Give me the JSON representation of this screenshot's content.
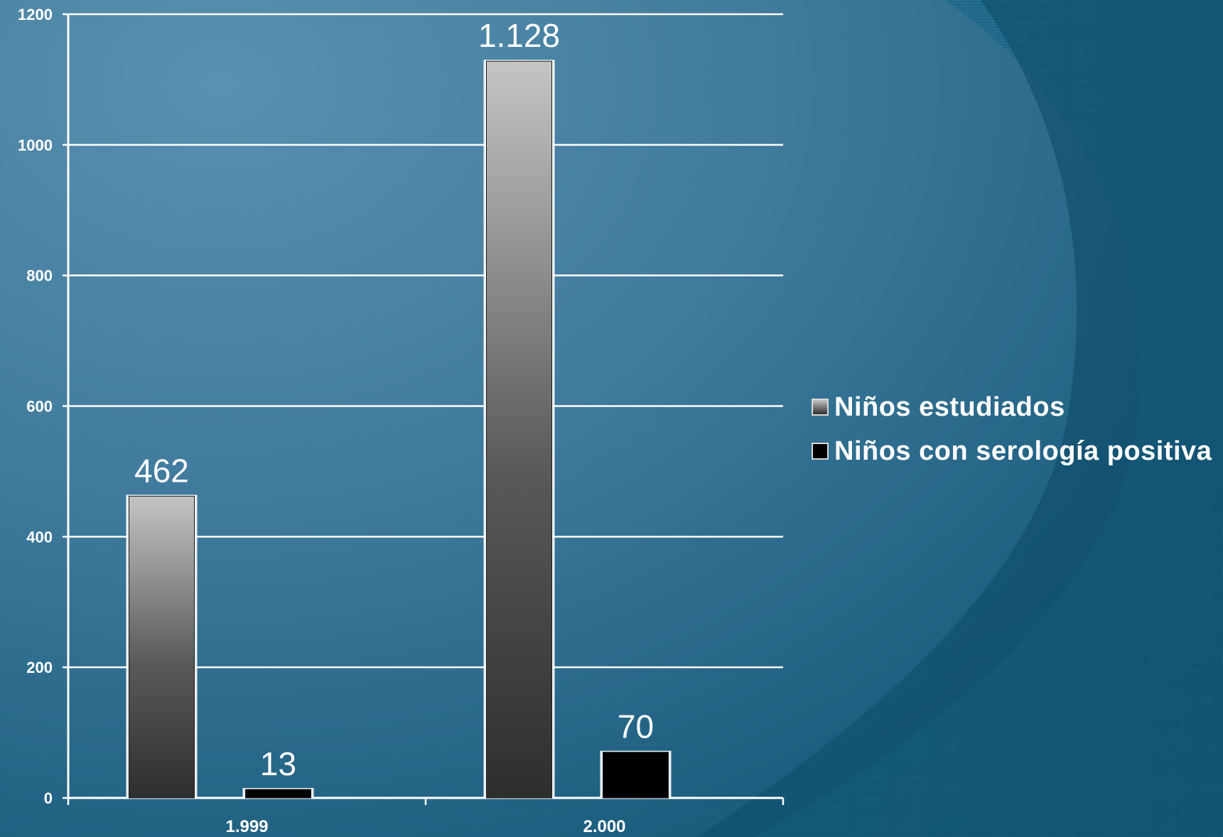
{
  "chart_data": {
    "type": "bar",
    "categories": [
      "1.999",
      "2.000"
    ],
    "series": [
      {
        "name": "Niños estudiados",
        "values": [
          462,
          1128
        ],
        "labels": [
          "462",
          "1.128"
        ],
        "color": "#6e6e6e"
      },
      {
        "name": "Niños con serología positiva",
        "values": [
          13,
          70
        ],
        "labels": [
          "13",
          "70"
        ],
        "color": "#000000"
      }
    ],
    "ylim": [
      0,
      1200
    ],
    "yticks": [
      "0",
      "200",
      "400",
      "600",
      "800",
      "1000",
      "1200"
    ],
    "grid": true,
    "legend_position": "right"
  },
  "colors": {
    "background": "#3f7a9c",
    "grid": "#ffffff",
    "text": "#ffffff"
  }
}
